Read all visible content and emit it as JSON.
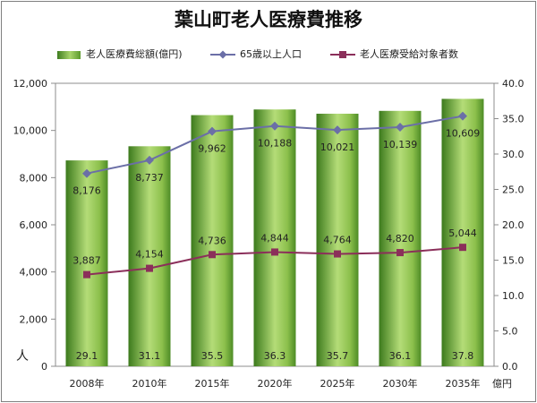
{
  "chart_data": {
    "title": "葉山町老人医療費推移",
    "type": "bar+line",
    "categories": [
      "2008年",
      "2010年",
      "2015年",
      "2020年",
      "2025年",
      "2030年",
      "2035年"
    ],
    "series": [
      {
        "name": "老人医療費総額(億円)",
        "type": "bar",
        "axis": "right",
        "values": [
          29.1,
          31.1,
          35.5,
          36.3,
          35.7,
          36.1,
          37.8
        ],
        "color": "#6aa832"
      },
      {
        "name": "65歳以上人口",
        "type": "line",
        "axis": "left",
        "marker": "diamond",
        "values": [
          8176,
          8737,
          9962,
          10188,
          10021,
          10139,
          10609
        ],
        "labels": [
          "8,176",
          "8,737",
          "9,962",
          "10,188",
          "10,021",
          "10,139",
          "10,609"
        ],
        "color": "#6b6fa7"
      },
      {
        "name": "老人医療受給対象者数",
        "type": "line",
        "axis": "left",
        "marker": "square",
        "values": [
          3887,
          4154,
          4736,
          4844,
          4764,
          4820,
          5044
        ],
        "labels": [
          "3,887",
          "4,154",
          "4,736",
          "4,844",
          "4,764",
          "4,820",
          "5,044"
        ],
        "color": "#8b2f5a"
      }
    ],
    "left_axis": {
      "unit": "人",
      "ylim": [
        0,
        12000
      ],
      "ticks": [
        0,
        2000,
        4000,
        6000,
        8000,
        10000,
        12000
      ],
      "tick_labels": [
        "0",
        "2,000",
        "4,000",
        "6,000",
        "8,000",
        "10,000",
        "12,000"
      ]
    },
    "right_axis": {
      "unit": "億円",
      "ylim": [
        0,
        40
      ],
      "ticks": [
        0,
        5,
        10,
        15,
        20,
        25,
        30,
        35,
        40
      ],
      "tick_labels": [
        "0.0",
        "5.0",
        "10.0",
        "15.0",
        "20.0",
        "25.0",
        "30.0",
        "35.0",
        "40.0"
      ]
    },
    "grid": false,
    "legend_position": "top"
  }
}
